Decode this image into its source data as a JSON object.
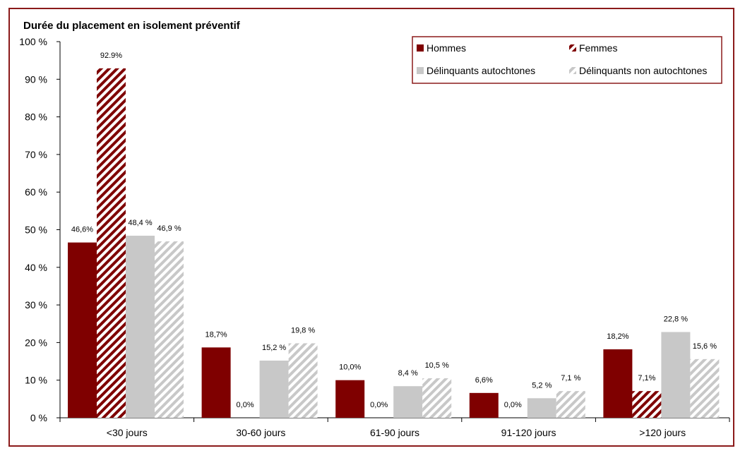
{
  "chart_data": {
    "type": "bar",
    "title": "Durée du placement en isolement préventif",
    "xlabel": "",
    "ylabel": "",
    "ylim": [
      0,
      100
    ],
    "yticks": [
      "0 %",
      "10 %",
      "20 %",
      "30 %",
      "40 %",
      "50 %",
      "60 %",
      "70 %",
      "80 %",
      "90 %",
      "100 %"
    ],
    "categories": [
      "<30 jours",
      "30-60 jours",
      "61-90 jours",
      "91-120 jours",
      ">120 jours"
    ],
    "legend_position": "top-right",
    "grid": false,
    "series": [
      {
        "name": "Hommes",
        "color": "#7f0000",
        "pattern": "solid",
        "values": [
          46.6,
          18.7,
          10.0,
          6.6,
          18.2
        ],
        "labels": [
          "46,6%",
          "18,7%",
          "10,0%",
          "6,6%",
          "18,2%"
        ]
      },
      {
        "name": "Femmes",
        "color": "#7f0000",
        "pattern": "hatched",
        "values": [
          92.9,
          0.0,
          0.0,
          0.0,
          7.1
        ],
        "labels": [
          "92.9%",
          "0,0%",
          "0,0%",
          "0,0%",
          "7,1%"
        ]
      },
      {
        "name": "Délinquants autochtones",
        "color": "#c8c8c8",
        "pattern": "solid",
        "values": [
          48.4,
          15.2,
          8.4,
          5.2,
          22.8
        ],
        "labels": [
          "48,4 %",
          "15,2 %",
          "8,4 %",
          "5,2 %",
          "22,8 %"
        ]
      },
      {
        "name": "Délinquants non autochtones",
        "color": "#c8c8c8",
        "pattern": "hatched",
        "values": [
          46.9,
          19.8,
          10.5,
          7.1,
          15.6
        ],
        "labels": [
          "46,9 %",
          "19,8 %",
          "10,5 %",
          "7,1 %",
          "15,6 %"
        ]
      }
    ]
  }
}
